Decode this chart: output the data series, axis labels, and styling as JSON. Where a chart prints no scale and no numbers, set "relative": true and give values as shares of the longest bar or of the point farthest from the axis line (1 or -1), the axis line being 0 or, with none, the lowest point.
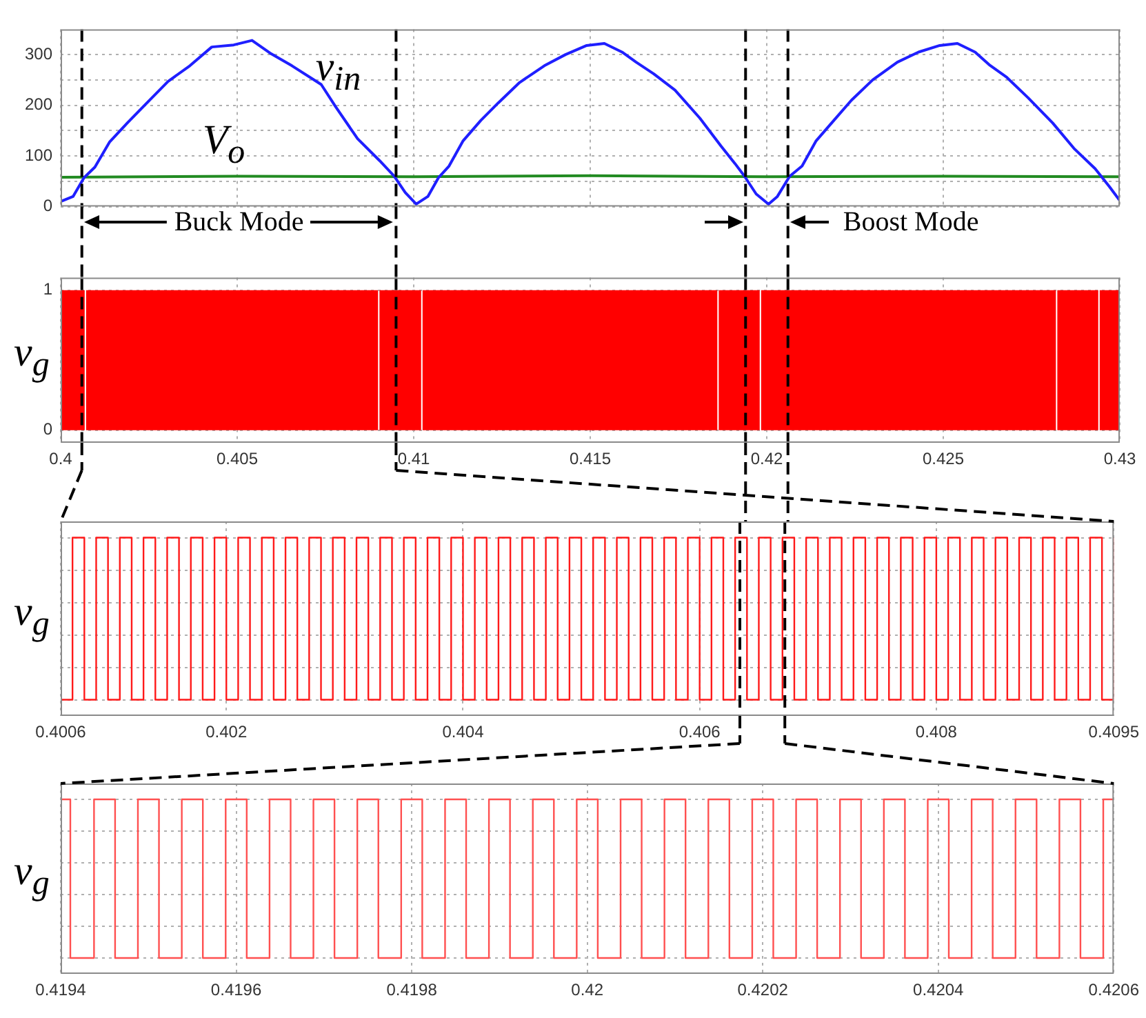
{
  "chart_data": [
    {
      "type": "line",
      "xlim": [
        0.4,
        0.43
      ],
      "xticks": [
        0.4,
        0.405,
        0.41,
        0.415,
        0.42,
        0.425,
        0.43
      ],
      "ylim": [
        0,
        350
      ],
      "yticks": [
        0,
        {
          "value": 50,
          "label": null
        },
        100,
        {
          "value": 150,
          "label": null
        },
        200,
        {
          "value": 250,
          "label": null
        },
        300
      ],
      "tick_labels": "y",
      "grid": true,
      "marker": "none",
      "series": [
        {
          "color": "#1f1fff",
          "x": [
            0.4,
            0.40035,
            0.40066,
            0.40097,
            0.40139,
            0.4019,
            0.40242,
            0.40304,
            0.40366,
            0.40428,
            0.4049,
            0.40542,
            0.40593,
            0.40655,
            0.40738,
            0.40779,
            0.40841,
            0.40903,
            0.40945,
            0.40976,
            0.41007,
            0.4104,
            0.4107,
            0.411,
            0.4114,
            0.4119,
            0.4124,
            0.413,
            0.4137,
            0.4143,
            0.4149,
            0.4154,
            0.4159,
            0.4163,
            0.4168,
            0.4174,
            0.4181,
            0.4187,
            0.4191,
            0.41937,
            0.4197,
            0.42005,
            0.4203,
            0.42065,
            0.421,
            0.4214,
            0.4219,
            0.4224,
            0.423,
            0.4237,
            0.4243,
            0.4249,
            0.4254,
            0.4259,
            0.4263,
            0.4268,
            0.4274,
            0.4281,
            0.4287,
            0.4293,
            0.4297,
            0.43
          ],
          "values": [
            10,
            20,
            57,
            78,
            128,
            166,
            203,
            247,
            278,
            315,
            319,
            328,
            303,
            278,
            241,
            197,
            134,
            91,
            60,
            28,
            5,
            20,
            57,
            80,
            130,
            170,
            205,
            245,
            278,
            300,
            318,
            322,
            305,
            285,
            262,
            230,
            175,
            120,
            85,
            60,
            25,
            5,
            20,
            60,
            80,
            130,
            170,
            210,
            250,
            285,
            305,
            318,
            322,
            305,
            280,
            255,
            215,
            165,
            115,
            75,
            40,
            12
          ]
        },
        {
          "color": "#228b22",
          "x": [
            0.4,
            0.405,
            0.41,
            0.415,
            0.42,
            0.425,
            0.43
          ],
          "values": [
            58,
            60,
            59,
            61,
            59,
            60,
            59
          ]
        }
      ],
      "ref_lines": [
        {
          "axis": "x",
          "value": 0.4006,
          "color": "#000000",
          "line_style": "dashed"
        },
        {
          "axis": "x",
          "value": 0.4095,
          "color": "#000000",
          "line_style": "dashed"
        },
        {
          "axis": "x",
          "value": 0.4194,
          "color": "#000000",
          "line_style": "dashed"
        },
        {
          "axis": "x",
          "value": 0.4206,
          "color": "#000000",
          "line_style": "dashed"
        }
      ],
      "annotations": [
        "v$_{in}$",
        "V$_{o}$",
        "Buck Mode",
        "Boost Mode"
      ]
    },
    {
      "type": "area",
      "ylabel": "v$_{g}$",
      "xlim": [
        0.4,
        0.43
      ],
      "xticks": [
        0.4,
        0.405,
        0.41,
        0.415,
        0.42,
        0.425,
        0.43
      ],
      "ylim": [
        -0.09,
        1.09
      ],
      "yticks": [
        0,
        1
      ],
      "grid": true,
      "marker": "none",
      "series": [
        {
          "color": "#ff0000",
          "x": [
            0.4,
            0.40068,
            0.40072,
            0.40899,
            0.40903,
            0.41021,
            0.41025,
            0.4186,
            0.41864,
            0.4198,
            0.41984,
            0.42819,
            0.42823,
            0.42939,
            0.42943,
            0.43
          ],
          "values": [
            1,
            0,
            1,
            0,
            1,
            0,
            1,
            0,
            1,
            0,
            1,
            0,
            1,
            0,
            1,
            1
          ]
        }
      ],
      "ref_lines": [
        {
          "axis": "x",
          "value": 0.4006,
          "color": "#000000",
          "line_style": "dashed"
        },
        {
          "axis": "x",
          "value": 0.4095,
          "color": "#000000",
          "line_style": "dashed"
        },
        {
          "axis": "x",
          "value": 0.4194,
          "color": "#000000",
          "line_style": "dashed"
        },
        {
          "axis": "x",
          "value": 0.4206,
          "color": "#000000",
          "line_style": "dashed"
        }
      ]
    },
    {
      "type": "step",
      "relative": true,
      "ylabel": "v$_{g}$",
      "xlim": [
        0.4006,
        0.4095
      ],
      "xticks": [
        0.4006,
        0.402,
        0.404,
        0.406,
        0.408,
        0.4095
      ],
      "tick_labels": "x",
      "grid": true,
      "marker": "none",
      "series": [
        {
          "color": "#ff1a1a",
          "x": [
            0.4006,
            0.4007,
            0.4008,
            0.4009,
            0.401,
            0.4011,
            0.4012,
            0.4013,
            0.4014,
            0.4015,
            0.4016,
            0.4017,
            0.4018,
            0.4019,
            0.402,
            0.4021,
            0.4022,
            0.4023,
            0.4024,
            0.4025,
            0.4026,
            0.4027,
            0.4028,
            0.4029,
            0.403,
            0.4031,
            0.4032,
            0.4033,
            0.4034,
            0.4035,
            0.4036,
            0.4037,
            0.4038,
            0.4039,
            0.404,
            0.4041,
            0.4042,
            0.4043,
            0.4044,
            0.4045,
            0.4046,
            0.4047,
            0.4048,
            0.4049,
            0.405,
            0.4051,
            0.4052,
            0.4053,
            0.4054,
            0.4055,
            0.4056,
            0.4057,
            0.4058,
            0.4059,
            0.406,
            0.4061,
            0.4062,
            0.4063,
            0.4064,
            0.4065,
            0.4066,
            0.4067,
            0.4068,
            0.4069,
            0.407,
            0.4071,
            0.4072,
            0.4073,
            0.4074,
            0.4075,
            0.4076,
            0.4077,
            0.4078,
            0.4079,
            0.408,
            0.4081,
            0.4082,
            0.4083,
            0.4084,
            0.4085,
            0.4086,
            0.4087,
            0.4088,
            0.4089,
            0.409,
            0.4091,
            0.4092,
            0.4093,
            0.4094,
            0.4095
          ],
          "values": [
            0,
            1,
            0,
            1,
            0,
            1,
            0,
            1,
            0,
            1,
            0,
            1,
            0,
            1,
            0,
            1,
            0,
            1,
            0,
            1,
            0,
            1,
            0,
            1,
            0,
            1,
            0,
            1,
            0,
            1,
            0,
            1,
            0,
            1,
            0,
            1,
            0,
            1,
            0,
            1,
            0,
            1,
            0,
            1,
            0,
            1,
            0,
            1,
            0,
            1,
            0,
            1,
            0,
            1,
            0,
            1,
            0,
            1,
            0,
            1,
            0,
            1,
            0,
            1,
            0,
            1,
            0,
            1,
            0,
            1,
            0,
            1,
            0,
            1,
            0,
            1,
            0,
            1,
            0,
            1,
            0,
            1,
            0,
            1,
            0,
            1,
            0,
            1,
            0,
            1
          ]
        }
      ],
      "ref_lines": [
        {
          "axis": "x",
          "value": 0.40634,
          "color": "#000000",
          "line_style": "dashed"
        },
        {
          "axis": "x",
          "value": 0.40672,
          "color": "#000000",
          "line_style": "dashed"
        }
      ]
    },
    {
      "type": "step",
      "relative": true,
      "ylabel": "v$_{g}$",
      "xlim": [
        0.4194,
        0.4206
      ],
      "xticks": [
        0.4194,
        0.4196,
        0.4198,
        0.42,
        0.4202,
        0.4204,
        0.4206
      ],
      "tick_labels": "x",
      "grid": true,
      "marker": "none",
      "series": [
        {
          "color": "#ff5050",
          "x": [
            0.4194,
            0.419411,
            0.419438,
            0.419462,
            0.419488,
            0.419512,
            0.419538,
            0.419562,
            0.419588,
            0.419612,
            0.419638,
            0.419662,
            0.419688,
            0.419712,
            0.419738,
            0.419762,
            0.419788,
            0.419812,
            0.419838,
            0.419862,
            0.419888,
            0.419912,
            0.419938,
            0.419962,
            0.419988,
            0.420012,
            0.420038,
            0.420062,
            0.420088,
            0.420112,
            0.420138,
            0.420162,
            0.420188,
            0.420212,
            0.420238,
            0.420262,
            0.420288,
            0.420312,
            0.420338,
            0.420362,
            0.420388,
            0.420412,
            0.420438,
            0.420462,
            0.420488,
            0.420512,
            0.420538,
            0.420562,
            0.420588,
            0.4206
          ],
          "values": [
            1,
            0,
            1,
            0,
            1,
            0,
            1,
            0,
            1,
            0,
            1,
            0,
            1,
            0,
            1,
            0,
            1,
            0,
            1,
            0,
            1,
            0,
            1,
            0,
            1,
            0,
            1,
            0,
            1,
            0,
            1,
            0,
            1,
            0,
            1,
            0,
            1,
            0,
            1,
            0,
            1,
            0,
            1,
            0,
            1,
            0,
            1,
            0,
            1,
            1
          ]
        }
      ]
    }
  ]
}
